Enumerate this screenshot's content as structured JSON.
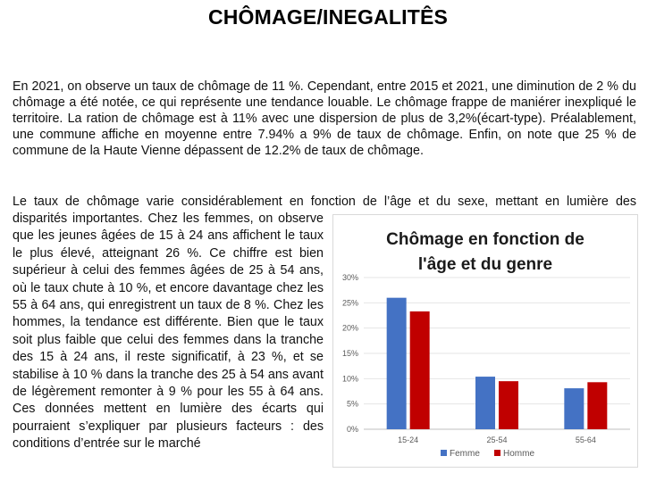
{
  "page": {
    "title": "CHÔMAGE/INEGALITÊS",
    "paragraph1": "En 2021, on observe un taux de chômage de 11 %. Cependant, entre 2015 et 2021, une diminution de 2 % du chômage a été notée, ce qui représente une tendance louable. Le chômage frappe de maniérer inexpliqué le territoire. La ration de chômage est à 11% avec une dispersion de plus de 3,2%(écart-type). Préalablement, une commune affiche en moyenne entre 7.94% a 9% de taux de chômage. Enfin, on note que 25 % de commune de la Haute Vienne dépassent de 12.2% de taux de chômage.",
    "paragraph2_first_line": "Le taux de chômage varie considérablement en fonction de l’âge et du sexe, mettant en lumière des",
    "paragraph2_rest": "disparités importantes. Chez les femmes, on observe que les jeunes âgées de 15 à 24 ans affichent le taux le plus élevé, atteignant 26 %. Ce chiffre est bien supérieur à celui des femmes âgées de 25 à 54 ans, où le taux chute à 10 %, et encore davantage chez les 55 à 64 ans, qui enregistrent un taux de 8 %. Chez les hommes, la tendance est différente. Bien que le taux soit plus faible que celui des femmes dans la tranche des 15 à 24 ans, il reste significatif, à 23 %, et se stabilise à 10 % dans la tranche des 25 à 54 ans avant de légèrement remonter à 9 % pour les 55 à 64 ans. Ces données mettent en lumière des écarts qui pourraient s’expliquer par plusieurs facteurs : des conditions d’entrée sur le marché"
  },
  "chart_data": {
    "type": "bar",
    "title_lines": [
      "Chômage en fonction de",
      "l'âge et du genre"
    ],
    "categories": [
      "15-24",
      "25-54",
      "55-64"
    ],
    "series": [
      {
        "name": "Femme",
        "values": [
          26,
          10.4,
          8.1
        ],
        "color": "#4472C4"
      },
      {
        "name": "Homme",
        "values": [
          23.3,
          9.5,
          9.3
        ],
        "color": "#C00000"
      }
    ],
    "ylim": [
      0,
      30
    ],
    "yticks": [
      "0%",
      "5%",
      "10%",
      "15%",
      "20%",
      "25%",
      "30%"
    ],
    "grid": true,
    "legend": "bottom"
  }
}
